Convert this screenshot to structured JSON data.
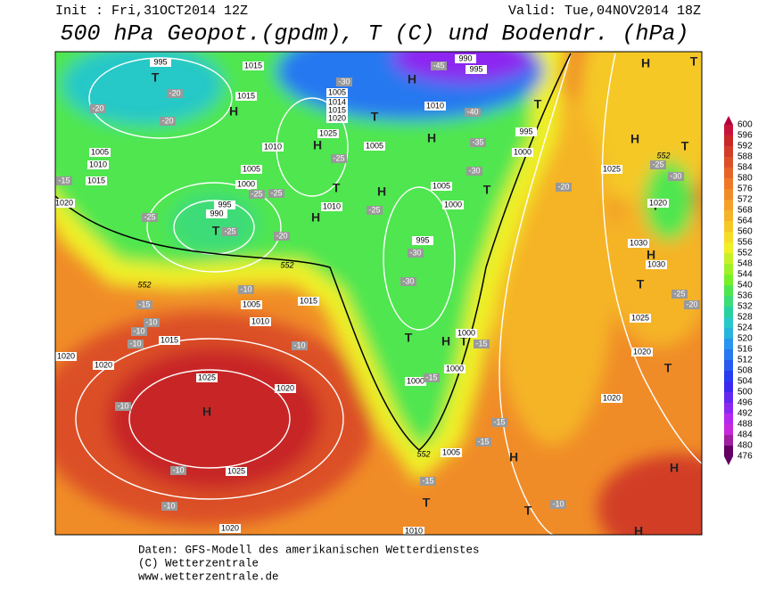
{
  "header": {
    "init": "Init : Fri,31OCT2014 12Z",
    "valid": "Valid: Tue,04NOV2014 18Z",
    "title": "500 hPa Geopot.(gpdm), T (C) und Bodendr. (hPa)"
  },
  "colorbar": {
    "levels": [
      600,
      596,
      592,
      588,
      584,
      580,
      576,
      572,
      568,
      564,
      560,
      556,
      552,
      548,
      544,
      540,
      536,
      532,
      528,
      524,
      520,
      516,
      512,
      508,
      504,
      500,
      496,
      492,
      488,
      484,
      480,
      476
    ],
    "colors": [
      "#b4003c",
      "#c8143c",
      "#c82828",
      "#d23c28",
      "#dc5028",
      "#e66428",
      "#f07828",
      "#f08c28",
      "#f5a028",
      "#f5b428",
      "#f5c828",
      "#f5dc28",
      "#f0f028",
      "#c8f028",
      "#a0f028",
      "#78f028",
      "#50e650",
      "#3cdc78",
      "#28d2a0",
      "#28c8c8",
      "#28b4dc",
      "#2896f0",
      "#2878f0",
      "#285af0",
      "#283cf0",
      "#3c28f0",
      "#6428f0",
      "#8c28f0",
      "#b428f0",
      "#c828dc",
      "#a01ea0",
      "#640064"
    ]
  },
  "map": {
    "centers": [
      "T",
      "H",
      "T",
      "H",
      "H",
      "T",
      "H",
      "H",
      "T",
      "H",
      "T",
      "T",
      "T",
      "T",
      "H",
      "T",
      "H",
      "H",
      "T",
      "H",
      "T",
      "T",
      "H",
      "T",
      "T",
      "H",
      "H",
      "H",
      "T",
      "T",
      "H"
    ],
    "isobar_labels": [
      "995",
      "1015",
      "1015",
      "1005",
      "1014",
      "1015",
      "1020",
      "1025",
      "1010",
      "1005",
      "1005",
      "1000",
      "995",
      "990",
      "1010",
      "1005",
      "1000",
      "995",
      "1010",
      "995",
      "1000",
      "1005",
      "1010",
      "1015",
      "1020",
      "1025",
      "1030",
      "1030",
      "1020",
      "1025",
      "1020",
      "1020",
      "1000",
      "1000",
      "1000",
      "1005",
      "1005",
      "1010",
      "1015",
      "1015",
      "1020",
      "1020",
      "1025",
      "1020",
      "1025",
      "1020",
      "1010",
      "990",
      "995"
    ],
    "temperature_labels": [
      "-20",
      "-20",
      "-20",
      "-25",
      "-25",
      "-20",
      "-25",
      "-25",
      "-25",
      "-30",
      "-30",
      "-25",
      "-30",
      "-45",
      "-40",
      "-35",
      "-30",
      "-20",
      "-25",
      "-30",
      "-25",
      "-20",
      "-15",
      "-15",
      "-10",
      "-10",
      "-10",
      "-10",
      "-10",
      "-15",
      "-15",
      "-15",
      "-15",
      "-15",
      "-10",
      "-10",
      "-10",
      "-10"
    ],
    "height_labels": [
      "552",
      "552",
      "552",
      "552"
    ]
  },
  "footer": [
    "Daten: GFS-Modell des amerikanischen Wetterdienstes",
    "(C) Wetterzentrale",
    "www.wetterzentrale.de"
  ]
}
